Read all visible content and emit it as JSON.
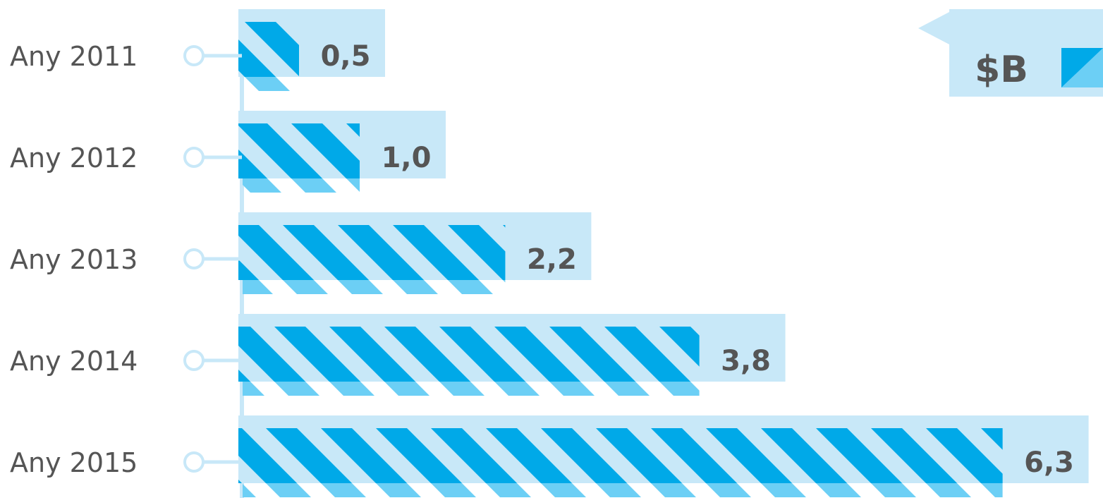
{
  "chart_data": {
    "type": "bar",
    "orientation": "horizontal",
    "categories": [
      "Any 2011",
      "Any 2012",
      "Any 2013",
      "Any 2014",
      "Any 2015"
    ],
    "values": [
      0.5,
      1.0,
      2.2,
      3.8,
      6.3
    ],
    "value_labels": [
      "0,5",
      "1,0",
      "2,2",
      "3,8",
      "6,3"
    ],
    "legend": {
      "label": "$B",
      "placement": "top-right"
    },
    "colors": {
      "bar": "#00a9e8",
      "bar_shadow": "#6ccff5",
      "panel": "#c8e8f8",
      "axis": "#c8e8f8",
      "text": "#555555"
    },
    "grid": false,
    "title": "",
    "xlabel": "",
    "ylabel": ""
  }
}
